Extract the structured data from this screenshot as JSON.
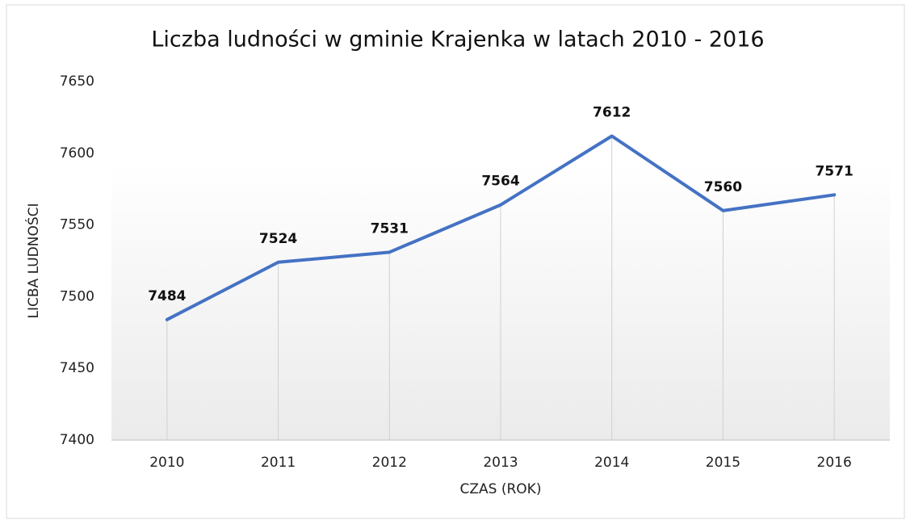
{
  "chart_data": {
    "type": "line",
    "title": "Liczba  ludności  w gminie  Krajenka  w latach 2010 - 2016",
    "x_label": "CZAS (ROK)",
    "y_label": "LICBA LUDNOŚCI",
    "categories": [
      "2010",
      "2011",
      "2012",
      "2013",
      "2014",
      "2015",
      "2016"
    ],
    "values": [
      7484,
      7524,
      7531,
      7564,
      7612,
      7560,
      7571
    ],
    "color": "#4472c4",
    "ylim": [
      7400,
      7650
    ],
    "yticks": [
      7400,
      7450,
      7500,
      7550,
      7600,
      7650
    ]
  }
}
